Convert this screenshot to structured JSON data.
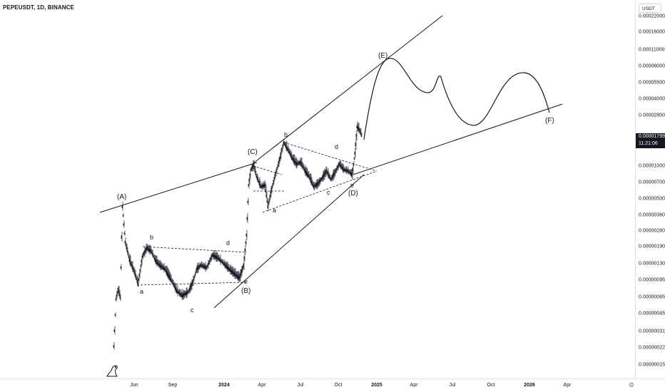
{
  "header": {
    "symbol_title": "PEPEUSDT, 1D, BINANCE"
  },
  "price_axis": {
    "currency": "USDT",
    "ticks": [
      "0.00022000",
      "0.00016000",
      "0.00011000",
      "0.00008000",
      "0.00005500",
      "0.00004000",
      "0.00002800",
      "0.00002000",
      "0.00001400",
      "0.00001000",
      "0.00000700",
      "0.00000500",
      "0.00000360",
      "0.00000260",
      "0.00000190",
      "0.00000130",
      "0.00000095",
      "0.00000065",
      "0.00000045",
      "0.00000031",
      "0.00000022",
      "0.00000015"
    ],
    "last_price": "0.00001799",
    "countdown": "11:21:06"
  },
  "time_axis": {
    "ticks": [
      {
        "label": "Jun",
        "bold": false
      },
      {
        "label": "Sep",
        "bold": false
      },
      {
        "label": "2024",
        "bold": true
      },
      {
        "label": "Apr",
        "bold": false
      },
      {
        "label": "Jul",
        "bold": false
      },
      {
        "label": "Oct",
        "bold": false
      },
      {
        "label": "2025",
        "bold": true
      },
      {
        "label": "Apr",
        "bold": false
      },
      {
        "label": "Jul",
        "bold": false
      },
      {
        "label": "Oct",
        "bold": false
      },
      {
        "label": "2026",
        "bold": true
      },
      {
        "label": "Apr",
        "bold": false
      }
    ]
  },
  "wave_labels": {
    "A": "(A)",
    "B": "(B)",
    "C": "(C)",
    "D": "(D)",
    "E": "(E)",
    "F": "(F)",
    "b_a_a": "a",
    "b_b": "b",
    "b_c": "c",
    "b_d": "d",
    "b_e": "e",
    "d_a": "a",
    "d_b": "b",
    "d_c": "c",
    "d_d": "d",
    "d_e": "e"
  },
  "colors": {
    "line": "#131722",
    "up": "#131722",
    "axis_border": "#e0e3eb",
    "label_bg": "#131722"
  },
  "icons": {
    "settings": "gear-icon",
    "logo": "tradingview-dino-icon"
  }
}
